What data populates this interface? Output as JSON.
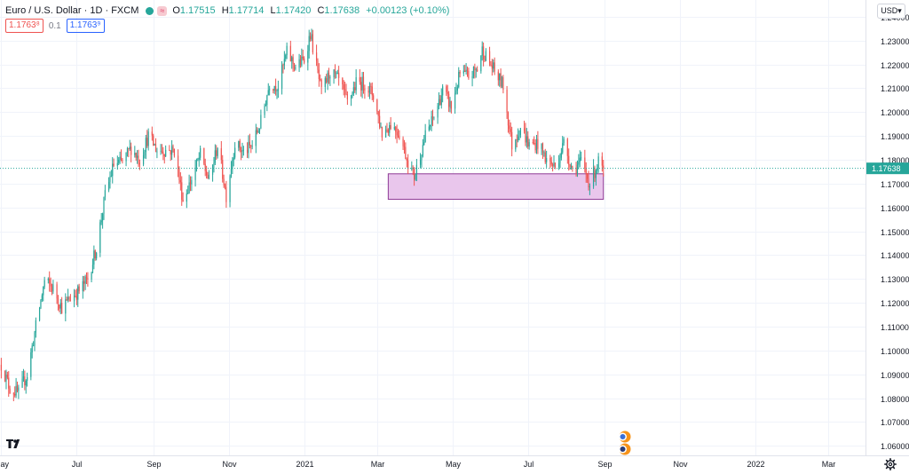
{
  "header": {
    "symbol": "Euro / U.S. Dollar · 1D · FXCM",
    "open_label": "O",
    "open": "1.17515",
    "high_label": "H",
    "high": "1.17714",
    "low_label": "L",
    "low": "1.17420",
    "close_label": "C",
    "close": "1.17638",
    "change": "+0.00123 (+0.10%)",
    "pill": "≈",
    "bid": "1.1763⁸",
    "spread": "0.1",
    "ask": "1.1763⁹",
    "currency": "USD▾"
  },
  "colors": {
    "up": "#26a69a",
    "down": "#ef5350",
    "zone_fill": "#e9c6ec",
    "zone_border": "#8e3b96",
    "price_tag": "#26a69a"
  },
  "icons": {
    "logo": "tradingview-logo-icon",
    "settings": "gear-icon",
    "events": "economic-events-icon"
  },
  "chart_data": {
    "type": "candlestick",
    "symbol": "EURUSD",
    "timeframe": "1D",
    "last_price": 1.17638,
    "last_price_label": "1.17638",
    "ylim": [
      1.056,
      1.247
    ],
    "y_ticks": [
      {
        "value": 1.24,
        "label": "1.24000"
      },
      {
        "value": 1.23,
        "label": "1.23000"
      },
      {
        "value": 1.22,
        "label": "1.22000"
      },
      {
        "value": 1.21,
        "label": "1.21000"
      },
      {
        "value": 1.2,
        "label": "1.20000"
      },
      {
        "value": 1.19,
        "label": "1.19000"
      },
      {
        "value": 1.18,
        "label": "1.18000"
      },
      {
        "value": 1.17,
        "label": "1.17000"
      },
      {
        "value": 1.16,
        "label": "1.16000"
      },
      {
        "value": 1.15,
        "label": "1.15000"
      },
      {
        "value": 1.14,
        "label": "1.14000"
      },
      {
        "value": 1.13,
        "label": "1.13000"
      },
      {
        "value": 1.12,
        "label": "1.12000"
      },
      {
        "value": 1.11,
        "label": "1.11000"
      },
      {
        "value": 1.1,
        "label": "1.10000"
      },
      {
        "value": 1.09,
        "label": "1.09000"
      },
      {
        "value": 1.08,
        "label": "1.08000"
      },
      {
        "value": 1.07,
        "label": "1.07000"
      },
      {
        "value": 1.06,
        "label": "1.06000"
      }
    ],
    "x_start": "2020-04-30",
    "x_end": "2022-03-31",
    "x_ticks": [
      {
        "date": "2020-05-01",
        "label": "May"
      },
      {
        "date": "2020-07-01",
        "label": "Jul"
      },
      {
        "date": "2020-09-01",
        "label": "Sep"
      },
      {
        "date": "2020-11-01",
        "label": "Nov"
      },
      {
        "date": "2021-01-01",
        "label": "2021"
      },
      {
        "date": "2021-03-01",
        "label": "Mar"
      },
      {
        "date": "2021-05-01",
        "label": "May"
      },
      {
        "date": "2021-07-01",
        "label": "Jul"
      },
      {
        "date": "2021-09-01",
        "label": "Sep"
      },
      {
        "date": "2021-11-01",
        "label": "Nov"
      },
      {
        "date": "2022-01-01",
        "label": "2022"
      },
      {
        "date": "2022-03-01",
        "label": "Mar"
      }
    ],
    "close_path": [
      {
        "date": "2020-05-01",
        "close": 1.094
      },
      {
        "date": "2020-05-08",
        "close": 1.084
      },
      {
        "date": "2020-05-15",
        "close": 1.082
      },
      {
        "date": "2020-05-22",
        "close": 1.09
      },
      {
        "date": "2020-05-29",
        "close": 1.11
      },
      {
        "date": "2020-06-05",
        "close": 1.129
      },
      {
        "date": "2020-06-12",
        "close": 1.126
      },
      {
        "date": "2020-06-19",
        "close": 1.118
      },
      {
        "date": "2020-06-26",
        "close": 1.122
      },
      {
        "date": "2020-07-03",
        "close": 1.125
      },
      {
        "date": "2020-07-10",
        "close": 1.13
      },
      {
        "date": "2020-07-17",
        "close": 1.143
      },
      {
        "date": "2020-07-24",
        "close": 1.165
      },
      {
        "date": "2020-07-31",
        "close": 1.178
      },
      {
        "date": "2020-08-07",
        "close": 1.179
      },
      {
        "date": "2020-08-14",
        "close": 1.185
      },
      {
        "date": "2020-08-21",
        "close": 1.18
      },
      {
        "date": "2020-08-28",
        "close": 1.19
      },
      {
        "date": "2020-09-04",
        "close": 1.184
      },
      {
        "date": "2020-09-11",
        "close": 1.184
      },
      {
        "date": "2020-09-18",
        "close": 1.184
      },
      {
        "date": "2020-09-25",
        "close": 1.163
      },
      {
        "date": "2020-10-02",
        "close": 1.172
      },
      {
        "date": "2020-10-09",
        "close": 1.182
      },
      {
        "date": "2020-10-16",
        "close": 1.171
      },
      {
        "date": "2020-10-23",
        "close": 1.186
      },
      {
        "date": "2020-10-30",
        "close": 1.165
      },
      {
        "date": "2020-11-06",
        "close": 1.187
      },
      {
        "date": "2020-11-13",
        "close": 1.183
      },
      {
        "date": "2020-11-20",
        "close": 1.186
      },
      {
        "date": "2020-11-27",
        "close": 1.196
      },
      {
        "date": "2020-12-04",
        "close": 1.212
      },
      {
        "date": "2020-12-11",
        "close": 1.211
      },
      {
        "date": "2020-12-18",
        "close": 1.225
      },
      {
        "date": "2020-12-25",
        "close": 1.219
      },
      {
        "date": "2021-01-01",
        "close": 1.222
      },
      {
        "date": "2021-01-06",
        "close": 1.233
      },
      {
        "date": "2021-01-15",
        "close": 1.208
      },
      {
        "date": "2021-01-22",
        "close": 1.217
      },
      {
        "date": "2021-01-29",
        "close": 1.213
      },
      {
        "date": "2021-02-05",
        "close": 1.204
      },
      {
        "date": "2021-02-12",
        "close": 1.212
      },
      {
        "date": "2021-02-19",
        "close": 1.212
      },
      {
        "date": "2021-02-26",
        "close": 1.207
      },
      {
        "date": "2021-03-05",
        "close": 1.191
      },
      {
        "date": "2021-03-12",
        "close": 1.195
      },
      {
        "date": "2021-03-19",
        "close": 1.191
      },
      {
        "date": "2021-03-26",
        "close": 1.179
      },
      {
        "date": "2021-03-31",
        "close": 1.173
      },
      {
        "date": "2021-04-09",
        "close": 1.19
      },
      {
        "date": "2021-04-16",
        "close": 1.198
      },
      {
        "date": "2021-04-23",
        "close": 1.209
      },
      {
        "date": "2021-04-30",
        "close": 1.202
      },
      {
        "date": "2021-05-07",
        "close": 1.216
      },
      {
        "date": "2021-05-14",
        "close": 1.215
      },
      {
        "date": "2021-05-21",
        "close": 1.218
      },
      {
        "date": "2021-05-25",
        "close": 1.226
      },
      {
        "date": "2021-06-04",
        "close": 1.217
      },
      {
        "date": "2021-06-11",
        "close": 1.211
      },
      {
        "date": "2021-06-18",
        "close": 1.186
      },
      {
        "date": "2021-06-25",
        "close": 1.194
      },
      {
        "date": "2021-07-02",
        "close": 1.186
      },
      {
        "date": "2021-07-09",
        "close": 1.187
      },
      {
        "date": "2021-07-16",
        "close": 1.18
      },
      {
        "date": "2021-07-23",
        "close": 1.177
      },
      {
        "date": "2021-07-30",
        "close": 1.187
      },
      {
        "date": "2021-08-06",
        "close": 1.176
      },
      {
        "date": "2021-08-13",
        "close": 1.179
      },
      {
        "date": "2021-08-20",
        "close": 1.17
      },
      {
        "date": "2021-08-27",
        "close": 1.179
      },
      {
        "date": "2021-08-31",
        "close": 1.176
      }
    ],
    "annotations": [
      {
        "type": "rectangle",
        "start": "2021-03-10",
        "end": "2021-08-31",
        "low": 1.1634,
        "high": 1.1741
      }
    ]
  }
}
